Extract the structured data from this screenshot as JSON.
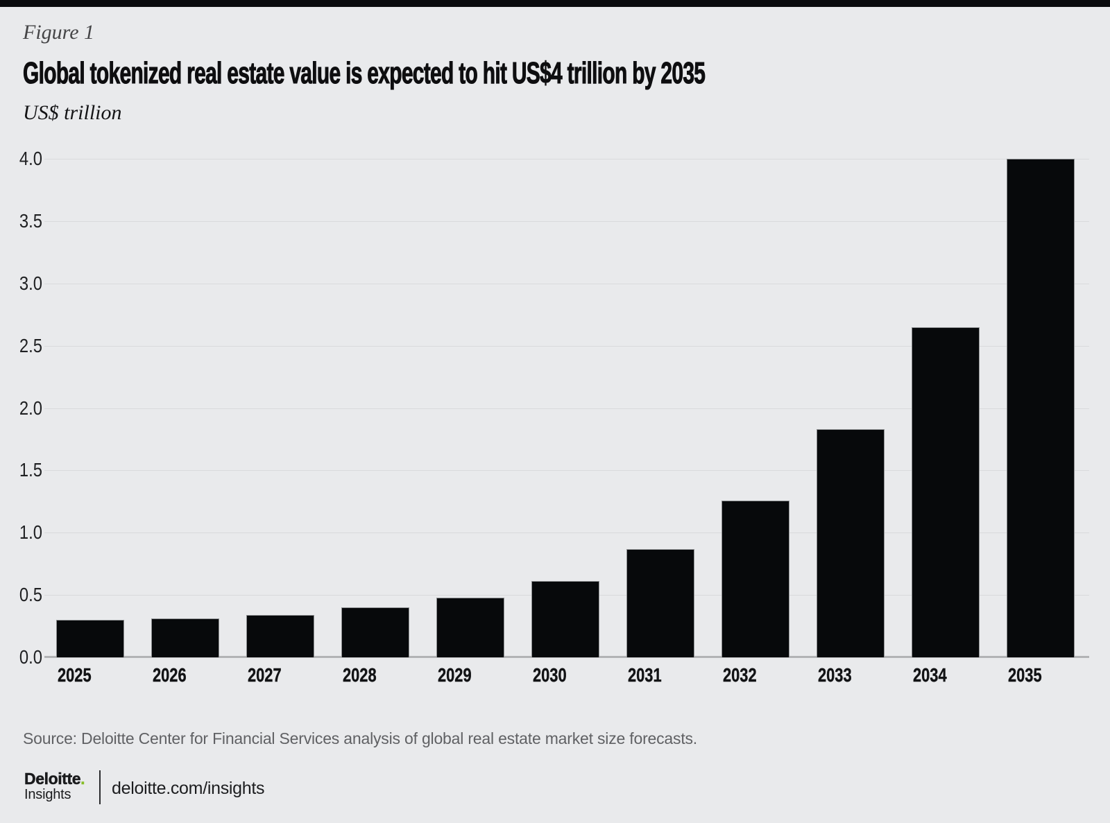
{
  "page": {
    "figure_label": "Figure 1",
    "title": "Global tokenized real estate value is expected to hit US$4 trillion by 2035",
    "unit_label": "US$ trillion",
    "source": "Source: Deloitte Center for Financial Services analysis of global real estate market size forecasts."
  },
  "footer": {
    "brand": "Deloitte",
    "brand_dot": ".",
    "brand_sub": "Insights",
    "link": "deloitte.com/insights"
  },
  "colors": {
    "top_bar": "#0b0c0e",
    "background": "#e9eaec",
    "bar_fill": "#07090b",
    "bar_outline": "#8c8e90",
    "gridline": "#d9dadc",
    "axis_line": "#b2b3b5",
    "brand_green": "#86bc25",
    "source_text": "#606164"
  },
  "chart_data": {
    "type": "bar",
    "title": "Global tokenized real estate value is expected to hit US$4 trillion by 2035",
    "xlabel": "",
    "ylabel": "US$ trillion",
    "categories": [
      "2025",
      "2026",
      "2027",
      "2028",
      "2029",
      "2030",
      "2031",
      "2032",
      "2033",
      "2034",
      "2035"
    ],
    "values": [
      0.3,
      0.31,
      0.34,
      0.4,
      0.48,
      0.61,
      0.87,
      1.26,
      1.83,
      2.65,
      4.0
    ],
    "ylim": [
      0,
      4.0
    ],
    "yticks": [
      0.0,
      0.5,
      1.0,
      1.5,
      2.0,
      2.5,
      3.0,
      3.5,
      4.0
    ],
    "grid": true,
    "legend": false,
    "bar_color": "#07090b"
  }
}
